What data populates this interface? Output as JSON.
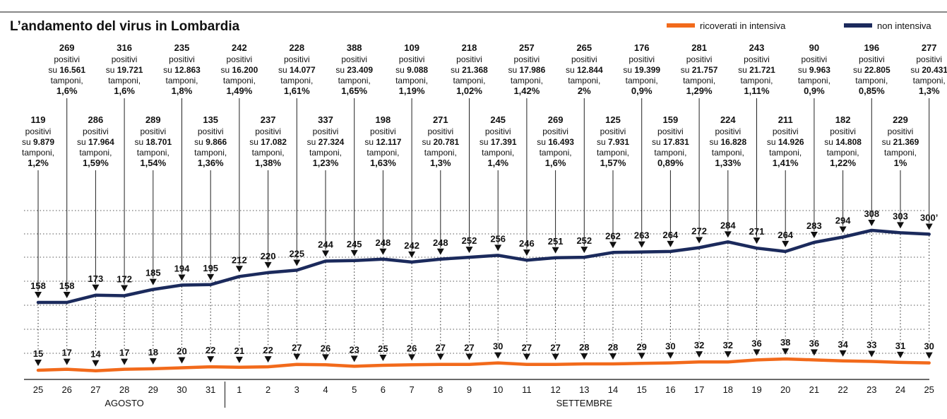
{
  "chart_data": {
    "type": "line",
    "title": "L’andamento del virus in Lombardia",
    "legend": {
      "placement": "top-right"
    },
    "x": [
      "25",
      "26",
      "27",
      "28",
      "29",
      "30",
      "31",
      "1",
      "2",
      "3",
      "4",
      "5",
      "6",
      "7",
      "8",
      "9",
      "10",
      "11",
      "12",
      "13",
      "14",
      "15",
      "16",
      "17",
      "18",
      "19",
      "20",
      "21",
      "22",
      "23",
      "24",
      "25"
    ],
    "months": [
      "AGOSTO",
      "SETTEMBRE"
    ],
    "grid": true,
    "series": [
      {
        "name": "ricoverati in intensiva",
        "color": "#f26a1b",
        "values": [
          15,
          17,
          14,
          17,
          18,
          20,
          22,
          21,
          22,
          27,
          26,
          23,
          25,
          26,
          27,
          27,
          30,
          27,
          27,
          28,
          28,
          29,
          30,
          32,
          32,
          36,
          38,
          36,
          34,
          33,
          31,
          30
        ],
        "labels": [
          "15",
          "17",
          "14",
          "17",
          "18",
          "20",
          "22",
          "21",
          "22",
          "27",
          "26",
          "23",
          "25",
          "26",
          "27",
          "27",
          "30",
          "27",
          "27",
          "28",
          "28",
          "29",
          "30",
          "32",
          "32",
          "36",
          "38",
          "36",
          "34",
          "33",
          "31",
          "30"
        ]
      },
      {
        "name": "non intensiva",
        "color": "#1b2a5c",
        "values": [
          158,
          158,
          173,
          172,
          185,
          194,
          195,
          212,
          220,
          225,
          244,
          245,
          248,
          242,
          248,
          252,
          256,
          246,
          251,
          252,
          262,
          263,
          264,
          272,
          284,
          271,
          264,
          283,
          294,
          308,
          303,
          300
        ],
        "labels": [
          "158",
          "158",
          "173",
          "172",
          "185",
          "194",
          "195",
          "212",
          "220",
          "225",
          "244",
          "245",
          "248",
          "242",
          "248",
          "252",
          "256",
          "246",
          "251",
          "252",
          "262",
          "263",
          "264",
          "272",
          "284",
          "271",
          "264",
          "283",
          "294",
          "308",
          "303",
          "300’"
        ]
      }
    ],
    "annotations": [
      {
        "positivi": "119",
        "tamponi": "9.879",
        "pct": "1,2%"
      },
      {
        "positivi": "269",
        "tamponi": "16.561",
        "pct": "1,6%"
      },
      {
        "positivi": "286",
        "tamponi": "17.964",
        "pct": "1,59%"
      },
      {
        "positivi": "316",
        "tamponi": "19.721",
        "pct": "1,6%"
      },
      {
        "positivi": "289",
        "tamponi": "18.701",
        "pct": "1,54%"
      },
      {
        "positivi": "235",
        "tamponi": "12.863",
        "pct": "1,8%"
      },
      {
        "positivi": "135",
        "tamponi": "9.866",
        "pct": "1,36%"
      },
      {
        "positivi": "242",
        "tamponi": "16.200",
        "pct": "1,49%"
      },
      {
        "positivi": "237",
        "tamponi": "17.082",
        "pct": "1,38%"
      },
      {
        "positivi": "228",
        "tamponi": "14.077",
        "pct": "1,61%"
      },
      {
        "positivi": "337",
        "tamponi": "27.324",
        "pct": "1,23%"
      },
      {
        "positivi": "388",
        "tamponi": "23.409",
        "pct": "1,65%"
      },
      {
        "positivi": "198",
        "tamponi": "12.117",
        "pct": "1,63%"
      },
      {
        "positivi": "109",
        "tamponi": "9.088",
        "pct": "1,19%"
      },
      {
        "positivi": "271",
        "tamponi": "20.781",
        "pct": "1,3%"
      },
      {
        "positivi": "218",
        "tamponi": "21.368",
        "pct": "1,02%"
      },
      {
        "positivi": "245",
        "tamponi": "17.391",
        "pct": "1,4%"
      },
      {
        "positivi": "257",
        "tamponi": "17.986",
        "pct": "1,42%"
      },
      {
        "positivi": "269",
        "tamponi": "16.493",
        "pct": "1,6%"
      },
      {
        "positivi": "265",
        "tamponi": "12.844",
        "pct": "2%"
      },
      {
        "positivi": "125",
        "tamponi": "7.931",
        "pct": "1,57%"
      },
      {
        "positivi": "176",
        "tamponi": "19.399",
        "pct": "0,9%"
      },
      {
        "positivi": "159",
        "tamponi": "17.831",
        "pct": "0,89%"
      },
      {
        "positivi": "281",
        "tamponi": "21.757",
        "pct": "1,29%"
      },
      {
        "positivi": "224",
        "tamponi": "16.828",
        "pct": "1,33%"
      },
      {
        "positivi": "243",
        "tamponi": "21.721",
        "pct": "1,11%"
      },
      {
        "positivi": "211",
        "tamponi": "14.926",
        "pct": "1,41%"
      },
      {
        "positivi": "90",
        "tamponi": "9.963",
        "pct": "0,9%"
      },
      {
        "positivi": "182",
        "tamponi": "14.808",
        "pct": "1,22%"
      },
      {
        "positivi": "196",
        "tamponi": "22.805",
        "pct": "0,85%"
      },
      {
        "positivi": "229",
        "tamponi": "21.369",
        "pct": "1%"
      },
      {
        "positivi": "277",
        "tamponi": "20.431",
        "pct": "1,3%"
      }
    ],
    "annotation_words": {
      "positivi": "positivi",
      "su": "su",
      "tamponi": "tamponi,"
    }
  }
}
